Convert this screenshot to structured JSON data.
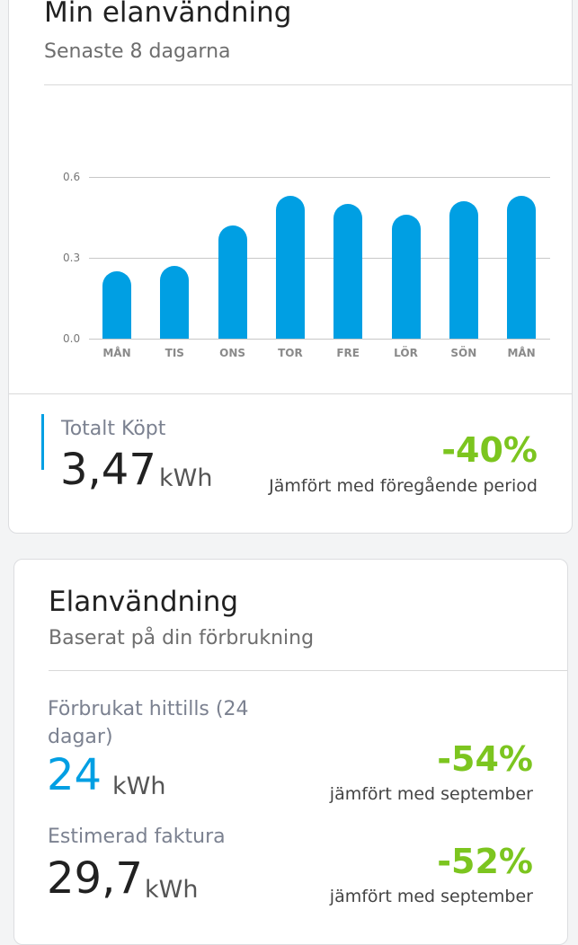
{
  "card1": {
    "title": "Min elanvändning",
    "subtitle": "Senaste 8 dagarna",
    "total_label": "Totalt Köpt",
    "total_value": "3,47",
    "total_unit": "kWh",
    "change": "-40%",
    "change_note": "Jämfört med föregående period"
  },
  "chart_data": {
    "type": "bar",
    "categories": [
      "MÅN",
      "TIS",
      "ONS",
      "TOR",
      "FRE",
      "LÖR",
      "SÖN",
      "MÅN"
    ],
    "values": [
      0.25,
      0.27,
      0.42,
      0.53,
      0.5,
      0.46,
      0.51,
      0.53
    ],
    "yticks": [
      "0.0",
      "0.3",
      "0.6"
    ],
    "ylim": [
      0,
      0.6
    ],
    "title": "",
    "xlabel": "",
    "ylabel": "",
    "bar_color": "#009fe3"
  },
  "card2": {
    "title": "Elanvändning",
    "subtitle": "Baserat på din förbrukning",
    "used_label": "Förbrukat hittills (24 dagar)",
    "used_label_line1": "Förbrukat hittills (24",
    "used_label_line2": "dagar)",
    "used_value": "24",
    "used_unit": "kWh",
    "used_change": "-54%",
    "used_note": "jämfört med september",
    "est_label": "Estimerad faktura",
    "est_value": "29,7",
    "est_unit": "kWh",
    "est_change": "-52%",
    "est_note": "jämfört med september"
  },
  "colors": {
    "accent_blue": "#009fe3",
    "positive_green": "#7cc51f"
  }
}
